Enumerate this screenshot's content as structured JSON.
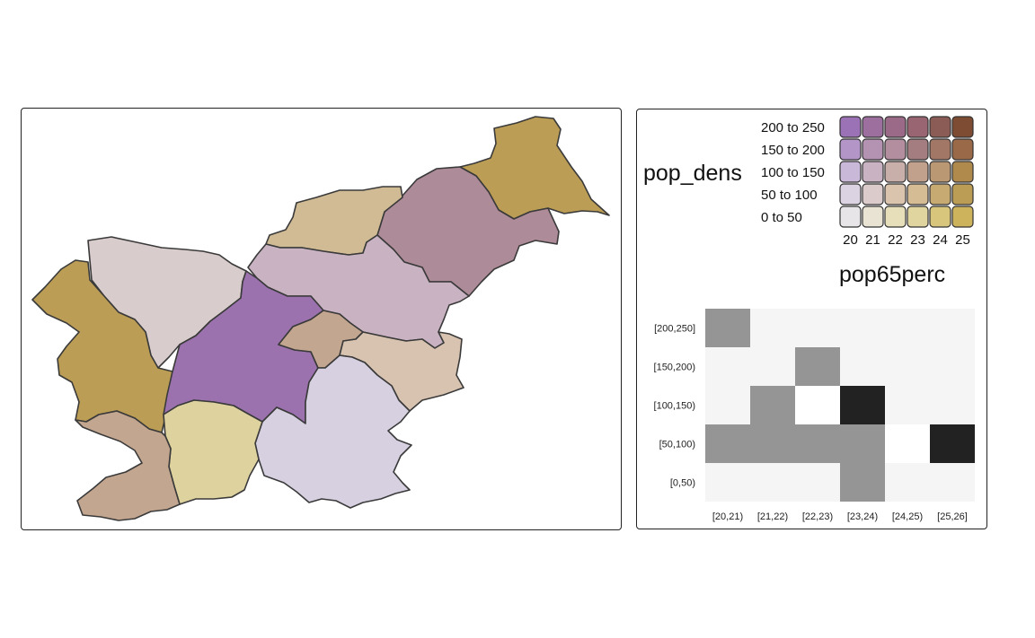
{
  "map": {
    "regions": [
      {
        "name": "",
        "fill": "#bb9d55"
      },
      {
        "name": "",
        "fill": "#ae8b98"
      },
      {
        "name": "",
        "fill": "#d1bb94"
      },
      {
        "name": "",
        "fill": "#d9cccc"
      },
      {
        "name": "",
        "fill": "#bb9d55"
      },
      {
        "name": "",
        "fill": "#c9b3c3"
      },
      {
        "name": "",
        "fill": "#9b72ae"
      },
      {
        "name": "",
        "fill": "#c3a68f"
      },
      {
        "name": "",
        "fill": "#d8c3b0"
      },
      {
        "name": "",
        "fill": "#d7d0e1"
      },
      {
        "name": "",
        "fill": "#ded39f"
      },
      {
        "name": "",
        "fill": "#c3a68f"
      }
    ]
  },
  "legend": {
    "row_title": "pop_dens",
    "col_title": "pop65perc",
    "row_labels": [
      "200 to 250",
      "150 to 200",
      "100 to 150",
      "50 to 100",
      "0 to 50"
    ],
    "col_labels": [
      "20",
      "21",
      "22",
      "23",
      "24",
      "25"
    ],
    "colors": [
      [
        "#9b72b6",
        "#9c6f9f",
        "#9b6a89",
        "#9a6572",
        "#8b5b55",
        "#7d4c33"
      ],
      [
        "#b495c7",
        "#b492b2",
        "#b28e9f",
        "#a37d7f",
        "#a27766",
        "#9a6947"
      ],
      [
        "#cab8d9",
        "#c9b3c3",
        "#c9afa9",
        "#c1a08c",
        "#b99873",
        "#b08a4d"
      ],
      [
        "#dcd3e2",
        "#dccbcb",
        "#dbc4ad",
        "#d6bc95",
        "#c6aa72",
        "#bb9d55"
      ],
      [
        "#e7e5e7",
        "#e8e3d3",
        "#e7dfba",
        "#e1d59f",
        "#d7c67c",
        "#cdb35c"
      ]
    ]
  },
  "chart_data": {
    "type": "heatmap",
    "title": "",
    "xlabel": "",
    "ylabel": "",
    "x_categories": [
      "[20,21)",
      "[21,22)",
      "[22,23)",
      "[23,24)",
      "[24,25)",
      "[25,26]"
    ],
    "y_categories": [
      "[200,250]",
      "[150,200)",
      "[100,150)",
      "[50,100)",
      "[0,50)"
    ],
    "values": [
      [
        1,
        0,
        0,
        0,
        0,
        0
      ],
      [
        0,
        0,
        1,
        0,
        0,
        0
      ],
      [
        0,
        1,
        0,
        2,
        0,
        0
      ],
      [
        1,
        1,
        1,
        1,
        0,
        2
      ],
      [
        0,
        0,
        0,
        1,
        0,
        0
      ]
    ],
    "colors": {
      "0": "#f5f5f5",
      "1": "#959595",
      "2": "#222222",
      "zero_blank": "#ffffff"
    }
  }
}
